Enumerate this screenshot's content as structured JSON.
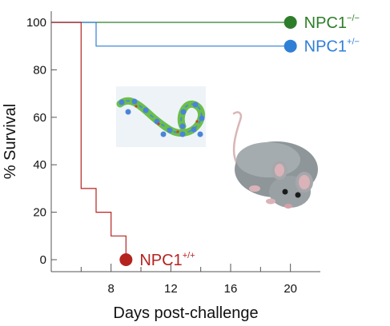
{
  "chart_data": {
    "type": "line",
    "step": true,
    "xlabel": "Days post-challenge",
    "ylabel": "% Survival",
    "xlim": [
      4,
      22
    ],
    "ylim": [
      0,
      100
    ],
    "xticks": [
      8,
      12,
      16,
      20
    ],
    "xtick_labels": [
      "8",
      "12",
      "16",
      "20"
    ],
    "yticks": [
      0,
      20,
      40,
      60,
      80,
      100
    ],
    "ytick_labels": [
      "0",
      "20",
      "40",
      "60",
      "80",
      "100"
    ],
    "grid": false,
    "series": [
      {
        "name": "NPC1",
        "genotype": "−/−",
        "color": "#2e7d2a",
        "x": [
          4,
          20
        ],
        "y": [
          100,
          100
        ]
      },
      {
        "name": "NPC1",
        "genotype": "+/−",
        "color": "#2f7fd6",
        "x": [
          4,
          7,
          7,
          20
        ],
        "y": [
          100,
          100,
          90,
          90
        ]
      },
      {
        "name": "NPC1",
        "genotype": "+/+",
        "color": "#b5231f",
        "x": [
          4,
          6,
          6,
          7,
          7,
          8,
          8,
          9,
          9
        ],
        "y": [
          100,
          100,
          30,
          30,
          20,
          20,
          10,
          10,
          0
        ]
      }
    ],
    "images": [
      "virus-particle-icon",
      "mouse-icon"
    ]
  }
}
